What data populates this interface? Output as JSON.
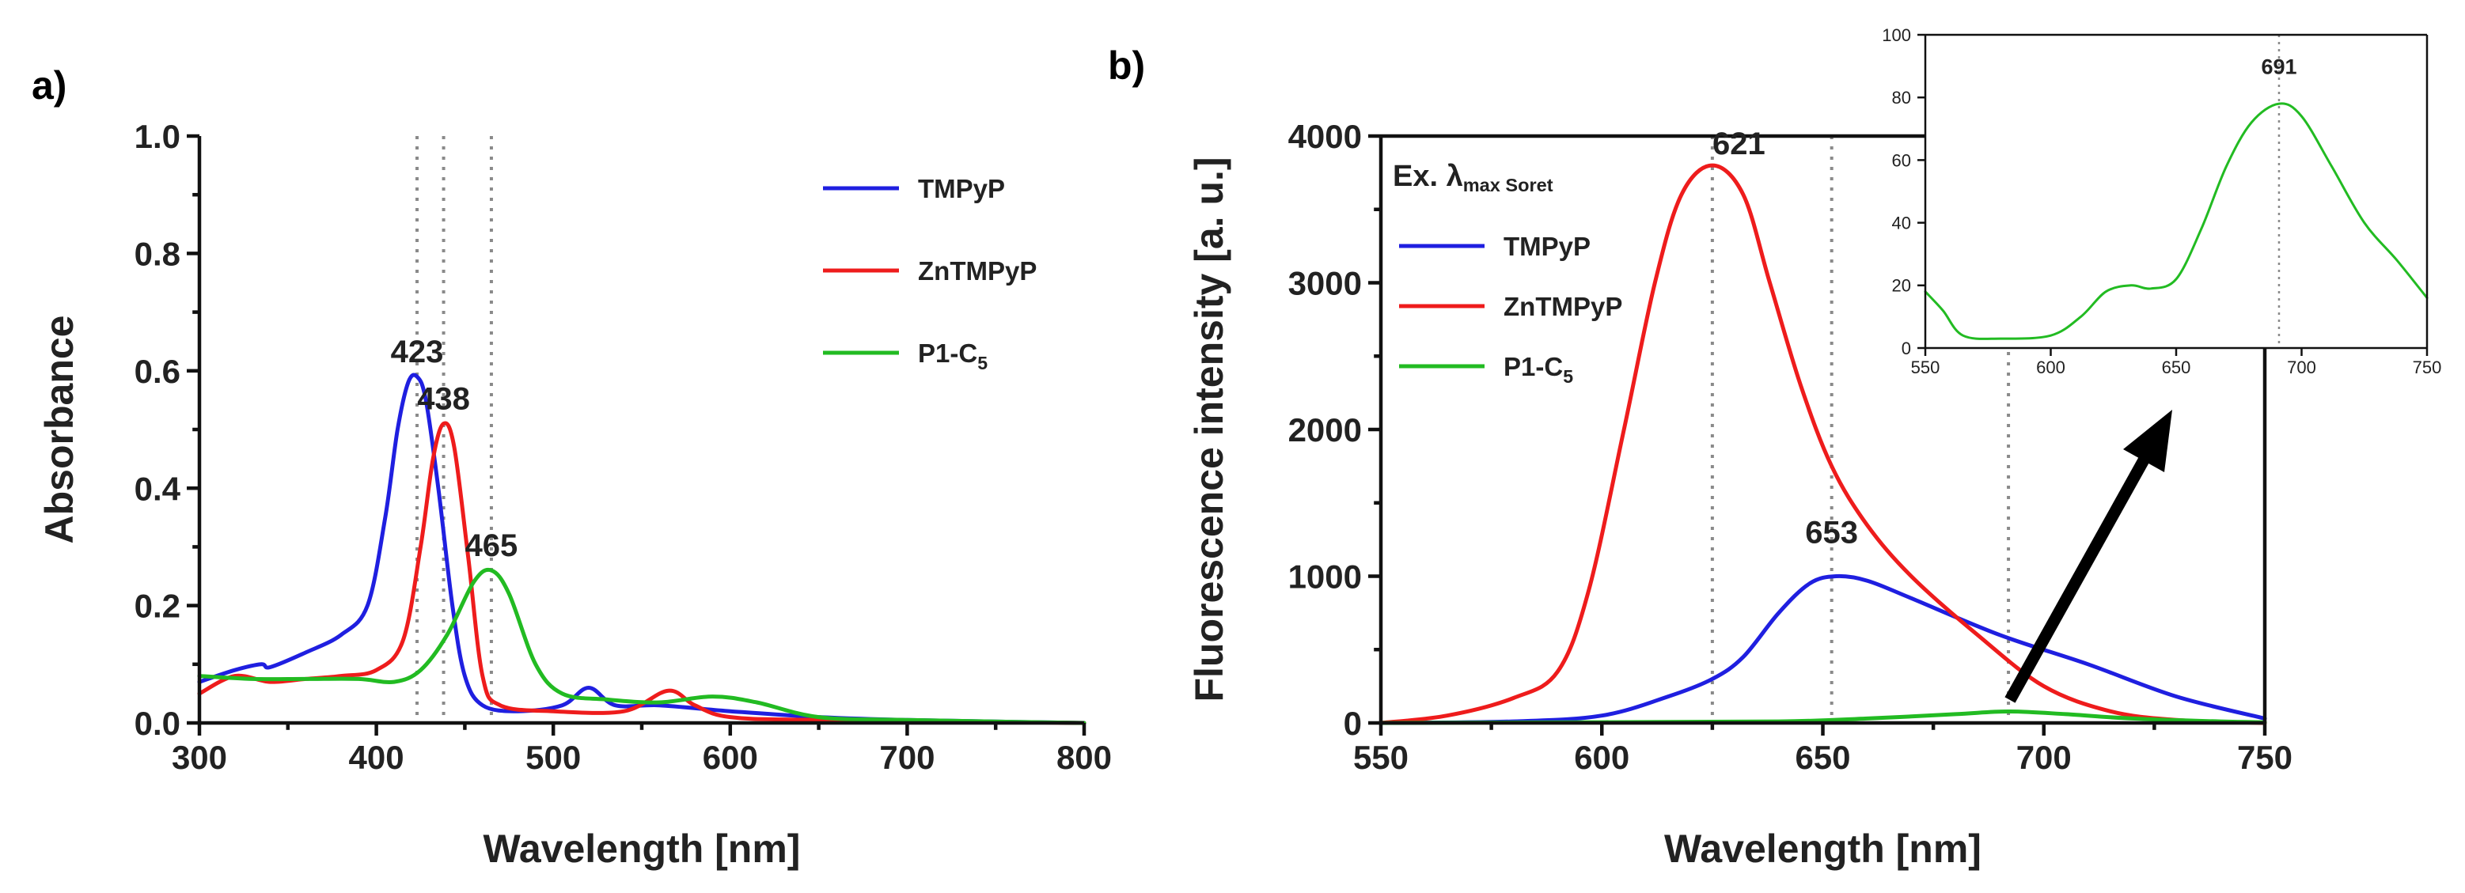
{
  "chart_data": [
    {
      "panel_label": "a)",
      "type": "line",
      "xlabel": "Wavelength [nm]",
      "ylabel": "Absorbance",
      "xlim": [
        300,
        800
      ],
      "ylim": [
        0,
        1.0
      ],
      "xticks": [
        "300",
        "400",
        "500",
        "600",
        "700",
        "800"
      ],
      "yticks": [
        "0.0",
        "0.2",
        "0.4",
        "0.6",
        "0.8",
        "1.0"
      ],
      "legend": {
        "position": "top-right",
        "entries": [
          {
            "text": "TMPyP",
            "color": "#1f1fe0"
          },
          {
            "text": "ZnTMPyP",
            "color": "#ee1c1c"
          },
          {
            "text": "P1-C",
            "sub": "5",
            "color": "#22bb22"
          }
        ]
      },
      "vlines": [
        423,
        438,
        465
      ],
      "annotations": [
        {
          "text": "423",
          "x": 423,
          "y": 0.59
        },
        {
          "text": "438",
          "x": 438,
          "y": 0.51
        },
        {
          "text": "465",
          "x": 465,
          "y": 0.26
        }
      ],
      "series": [
        {
          "name": "TMPyP",
          "color": "#1f1fe0",
          "x": [
            300,
            320,
            335,
            340,
            360,
            380,
            395,
            405,
            412,
            418,
            423,
            428,
            435,
            443,
            450,
            460,
            480,
            505,
            520,
            535,
            560,
            600,
            650,
            700,
            800
          ],
          "y": [
            0.07,
            0.09,
            0.1,
            0.095,
            0.12,
            0.15,
            0.2,
            0.35,
            0.5,
            0.58,
            0.59,
            0.55,
            0.4,
            0.2,
            0.08,
            0.03,
            0.02,
            0.03,
            0.06,
            0.03,
            0.03,
            0.02,
            0.01,
            0.005,
            0.0
          ]
        },
        {
          "name": "ZnTMPyP",
          "color": "#ee1c1c",
          "x": [
            300,
            320,
            340,
            360,
            380,
            400,
            415,
            425,
            432,
            438,
            444,
            452,
            460,
            470,
            500,
            540,
            565,
            580,
            600,
            650,
            800
          ],
          "y": [
            0.05,
            0.08,
            0.07,
            0.075,
            0.08,
            0.09,
            0.14,
            0.3,
            0.45,
            0.51,
            0.47,
            0.28,
            0.08,
            0.03,
            0.02,
            0.02,
            0.055,
            0.03,
            0.01,
            0.005,
            0.0
          ]
        },
        {
          "name": "P1-C5",
          "color": "#22bb22",
          "x": [
            300,
            330,
            360,
            390,
            410,
            425,
            440,
            455,
            465,
            475,
            490,
            505,
            530,
            560,
            590,
            615,
            650,
            700,
            800
          ],
          "y": [
            0.08,
            0.075,
            0.075,
            0.075,
            0.07,
            0.09,
            0.15,
            0.24,
            0.26,
            0.22,
            0.1,
            0.05,
            0.04,
            0.035,
            0.045,
            0.035,
            0.01,
            0.005,
            0.0
          ]
        }
      ]
    },
    {
      "panel_label": "b)",
      "type": "line",
      "xlabel": "Wavelength [nm]",
      "ylabel": "Fluorescence intensity [a. u.]",
      "xlim": [
        550,
        750
      ],
      "ylim": [
        0,
        4000
      ],
      "xticks": [
        "550",
        "600",
        "650",
        "700",
        "750"
      ],
      "yticks": [
        "0",
        "1000",
        "2000",
        "3000",
        "4000"
      ],
      "legend": {
        "position": "top-left",
        "title": "Ex. λ",
        "title_sub": "max Soret",
        "entries": [
          {
            "text": "TMPyP",
            "color": "#1f1fe0"
          },
          {
            "text": "ZnTMPyP",
            "color": "#ee1c1c"
          },
          {
            "text": "P1-C",
            "sub": "5",
            "color": "#22bb22"
          }
        ]
      },
      "vlines": [
        625,
        652,
        692
      ],
      "annotations": [
        {
          "text": "621",
          "x": 631,
          "y": 3780
        },
        {
          "text": "653",
          "x": 652,
          "y": 1130
        }
      ],
      "series": [
        {
          "name": "TMPyP",
          "color": "#1f1fe0",
          "x": [
            550,
            580,
            600,
            615,
            625,
            632,
            640,
            647,
            653,
            660,
            670,
            690,
            710,
            730,
            750
          ],
          "y": [
            0,
            10,
            50,
            180,
            300,
            450,
            750,
            950,
            1000,
            970,
            850,
            600,
            400,
            180,
            30
          ]
        },
        {
          "name": "ZnTMPyP",
          "color": "#ee1c1c",
          "x": [
            550,
            565,
            580,
            590,
            597,
            605,
            612,
            618,
            625,
            632,
            638,
            645,
            652,
            660,
            670,
            685,
            700,
            715,
            730,
            750
          ],
          "y": [
            0,
            50,
            170,
            350,
            900,
            2000,
            3000,
            3600,
            3800,
            3600,
            3000,
            2300,
            1750,
            1350,
            1000,
            600,
            250,
            80,
            20,
            0
          ]
        },
        {
          "name": "P1-C5",
          "color": "#22bb22",
          "x": [
            550,
            600,
            640,
            660,
            680,
            692,
            705,
            720,
            740,
            750
          ],
          "y": [
            0,
            5,
            10,
            30,
            60,
            78,
            60,
            30,
            10,
            5
          ]
        }
      ]
    },
    {
      "panel_label": "inset",
      "type": "line",
      "xlim": [
        550,
        750
      ],
      "ylim": [
        0,
        100
      ],
      "xticks": [
        "550",
        "600",
        "650",
        "700",
        "750"
      ],
      "yticks": [
        "0",
        "20",
        "40",
        "60",
        "80",
        "100"
      ],
      "vlines": [
        691
      ],
      "annotations": [
        {
          "text": "691",
          "x": 691,
          "y": 84
        }
      ],
      "series": [
        {
          "name": "P1-C5",
          "color": "#22bb22",
          "x": [
            550,
            557,
            565,
            580,
            600,
            612,
            622,
            632,
            640,
            650,
            660,
            670,
            680,
            691,
            700,
            712,
            725,
            738,
            750
          ],
          "y": [
            18,
            12,
            4,
            3,
            4,
            10,
            18,
            20,
            19,
            22,
            38,
            58,
            72,
            78,
            74,
            58,
            40,
            28,
            16
          ]
        }
      ]
    }
  ]
}
